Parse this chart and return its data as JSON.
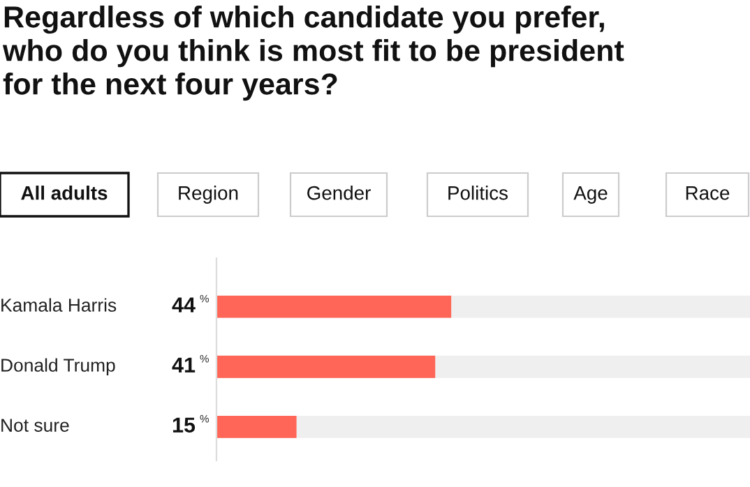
{
  "chart_data": {
    "type": "bar",
    "orientation": "horizontal",
    "title": "Regardless of which candidate you prefer,\nwho do you think is most fit to be president\nfor the next four years?",
    "annotations": [
      "All adults",
      "Region",
      "Gender",
      "Politics",
      "Age",
      "Race"
    ],
    "categories": [
      "Kamala Harris",
      "Donald Trump",
      "Not sure"
    ],
    "values": [
      44,
      41,
      15
    ],
    "value_labels": [
      "44%",
      "41%",
      "15%"
    ],
    "color": "#ff6657",
    "xlim": [
      0,
      100
    ]
  }
}
